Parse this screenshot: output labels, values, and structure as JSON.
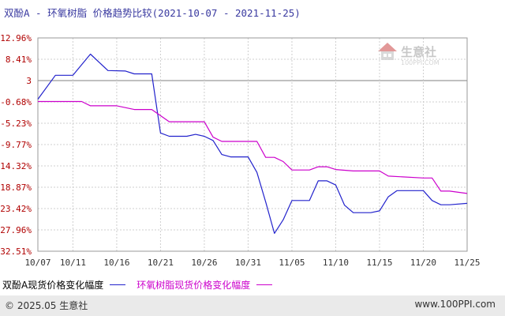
{
  "title": {
    "main": "双酚A - 环氧树脂 价格趋势比较",
    "range": "(2021-10-07 - 2021-11-25)"
  },
  "watermark": {
    "name": "生意社",
    "url": "100PPI.COM"
  },
  "footer": {
    "copyright": "© 2025.05 生意社",
    "site": "www.100PPI.com"
  },
  "colors": {
    "series1": "#2222cc",
    "series2": "#cc00cc",
    "baseline": "#808080",
    "grid": "#cfcfcf",
    "tick_text": "#b00000"
  },
  "chart_data": {
    "type": "line",
    "title": "双酚A - 环氧树脂 价格趋势比较",
    "y_ticks": [
      "12.96%",
      "8.41%",
      "3",
      "-0.68%",
      "-5.23%",
      "-9.77%",
      "-14.32%",
      "-18.87%",
      "-23.42%",
      "-27.96%",
      "-32.51%"
    ],
    "y_tick_values": [
      12.96,
      8.41,
      3.86,
      -0.68,
      -5.23,
      -9.77,
      -14.32,
      -18.87,
      -23.42,
      -27.96,
      -32.51
    ],
    "ylim": [
      -32.51,
      12.96
    ],
    "baseline_value": 3.86,
    "x_ticks": [
      "10/07",
      "10/11",
      "10/16",
      "10/21",
      "10/26",
      "10/31",
      "11/05",
      "11/10",
      "11/15",
      "11/20",
      "11/25"
    ],
    "x_tick_days": [
      0,
      4,
      9,
      14,
      19,
      24,
      29,
      34,
      39,
      44,
      49
    ],
    "grid": true,
    "legend_position": "bottom-left",
    "series": [
      {
        "name": "双酚A现货价格变化幅度",
        "color": "#2222cc",
        "points": [
          [
            0,
            -0.1
          ],
          [
            2,
            5.0
          ],
          [
            4,
            5.0
          ],
          [
            6,
            9.5
          ],
          [
            8,
            6.0
          ],
          [
            10,
            5.9
          ],
          [
            11,
            5.3
          ],
          [
            13,
            5.3
          ],
          [
            14,
            -7.3
          ],
          [
            15,
            -8.0
          ],
          [
            17,
            -8.0
          ],
          [
            18,
            -7.6
          ],
          [
            19,
            -8.0
          ],
          [
            20,
            -8.9
          ],
          [
            21,
            -11.9
          ],
          [
            22,
            -12.4
          ],
          [
            24,
            -12.4
          ],
          [
            25,
            -15.7
          ],
          [
            26,
            -22.0
          ],
          [
            27,
            -28.7
          ],
          [
            28,
            -25.8
          ],
          [
            29,
            -21.7
          ],
          [
            31,
            -21.7
          ],
          [
            32,
            -17.5
          ],
          [
            33,
            -17.5
          ],
          [
            34,
            -18.4
          ],
          [
            35,
            -22.7
          ],
          [
            36,
            -24.3
          ],
          [
            38,
            -24.3
          ],
          [
            39,
            -23.9
          ],
          [
            40,
            -20.9
          ],
          [
            41,
            -19.6
          ],
          [
            44,
            -19.6
          ],
          [
            45,
            -21.7
          ],
          [
            46,
            -22.6
          ],
          [
            47,
            -22.6
          ],
          [
            49,
            -22.3
          ]
        ]
      },
      {
        "name": "环氧树脂现货价格变化幅度",
        "color": "#cc00cc",
        "points": [
          [
            0,
            -0.6
          ],
          [
            5,
            -0.6
          ],
          [
            6,
            -1.5
          ],
          [
            9,
            -1.5
          ],
          [
            11,
            -2.3
          ],
          [
            13,
            -2.3
          ],
          [
            15,
            -4.9
          ],
          [
            19,
            -4.9
          ],
          [
            20,
            -8.2
          ],
          [
            21,
            -9.1
          ],
          [
            23,
            -9.1
          ],
          [
            25,
            -9.1
          ],
          [
            26,
            -12.5
          ],
          [
            27,
            -12.5
          ],
          [
            28,
            -13.4
          ],
          [
            29,
            -15.2
          ],
          [
            31,
            -15.2
          ],
          [
            32,
            -14.5
          ],
          [
            33,
            -14.5
          ],
          [
            34,
            -15.1
          ],
          [
            36,
            -15.4
          ],
          [
            39,
            -15.4
          ],
          [
            40,
            -16.5
          ],
          [
            44,
            -16.9
          ],
          [
            45,
            -16.9
          ],
          [
            46,
            -19.7
          ],
          [
            47,
            -19.7
          ],
          [
            49,
            -20.2
          ]
        ]
      }
    ]
  }
}
